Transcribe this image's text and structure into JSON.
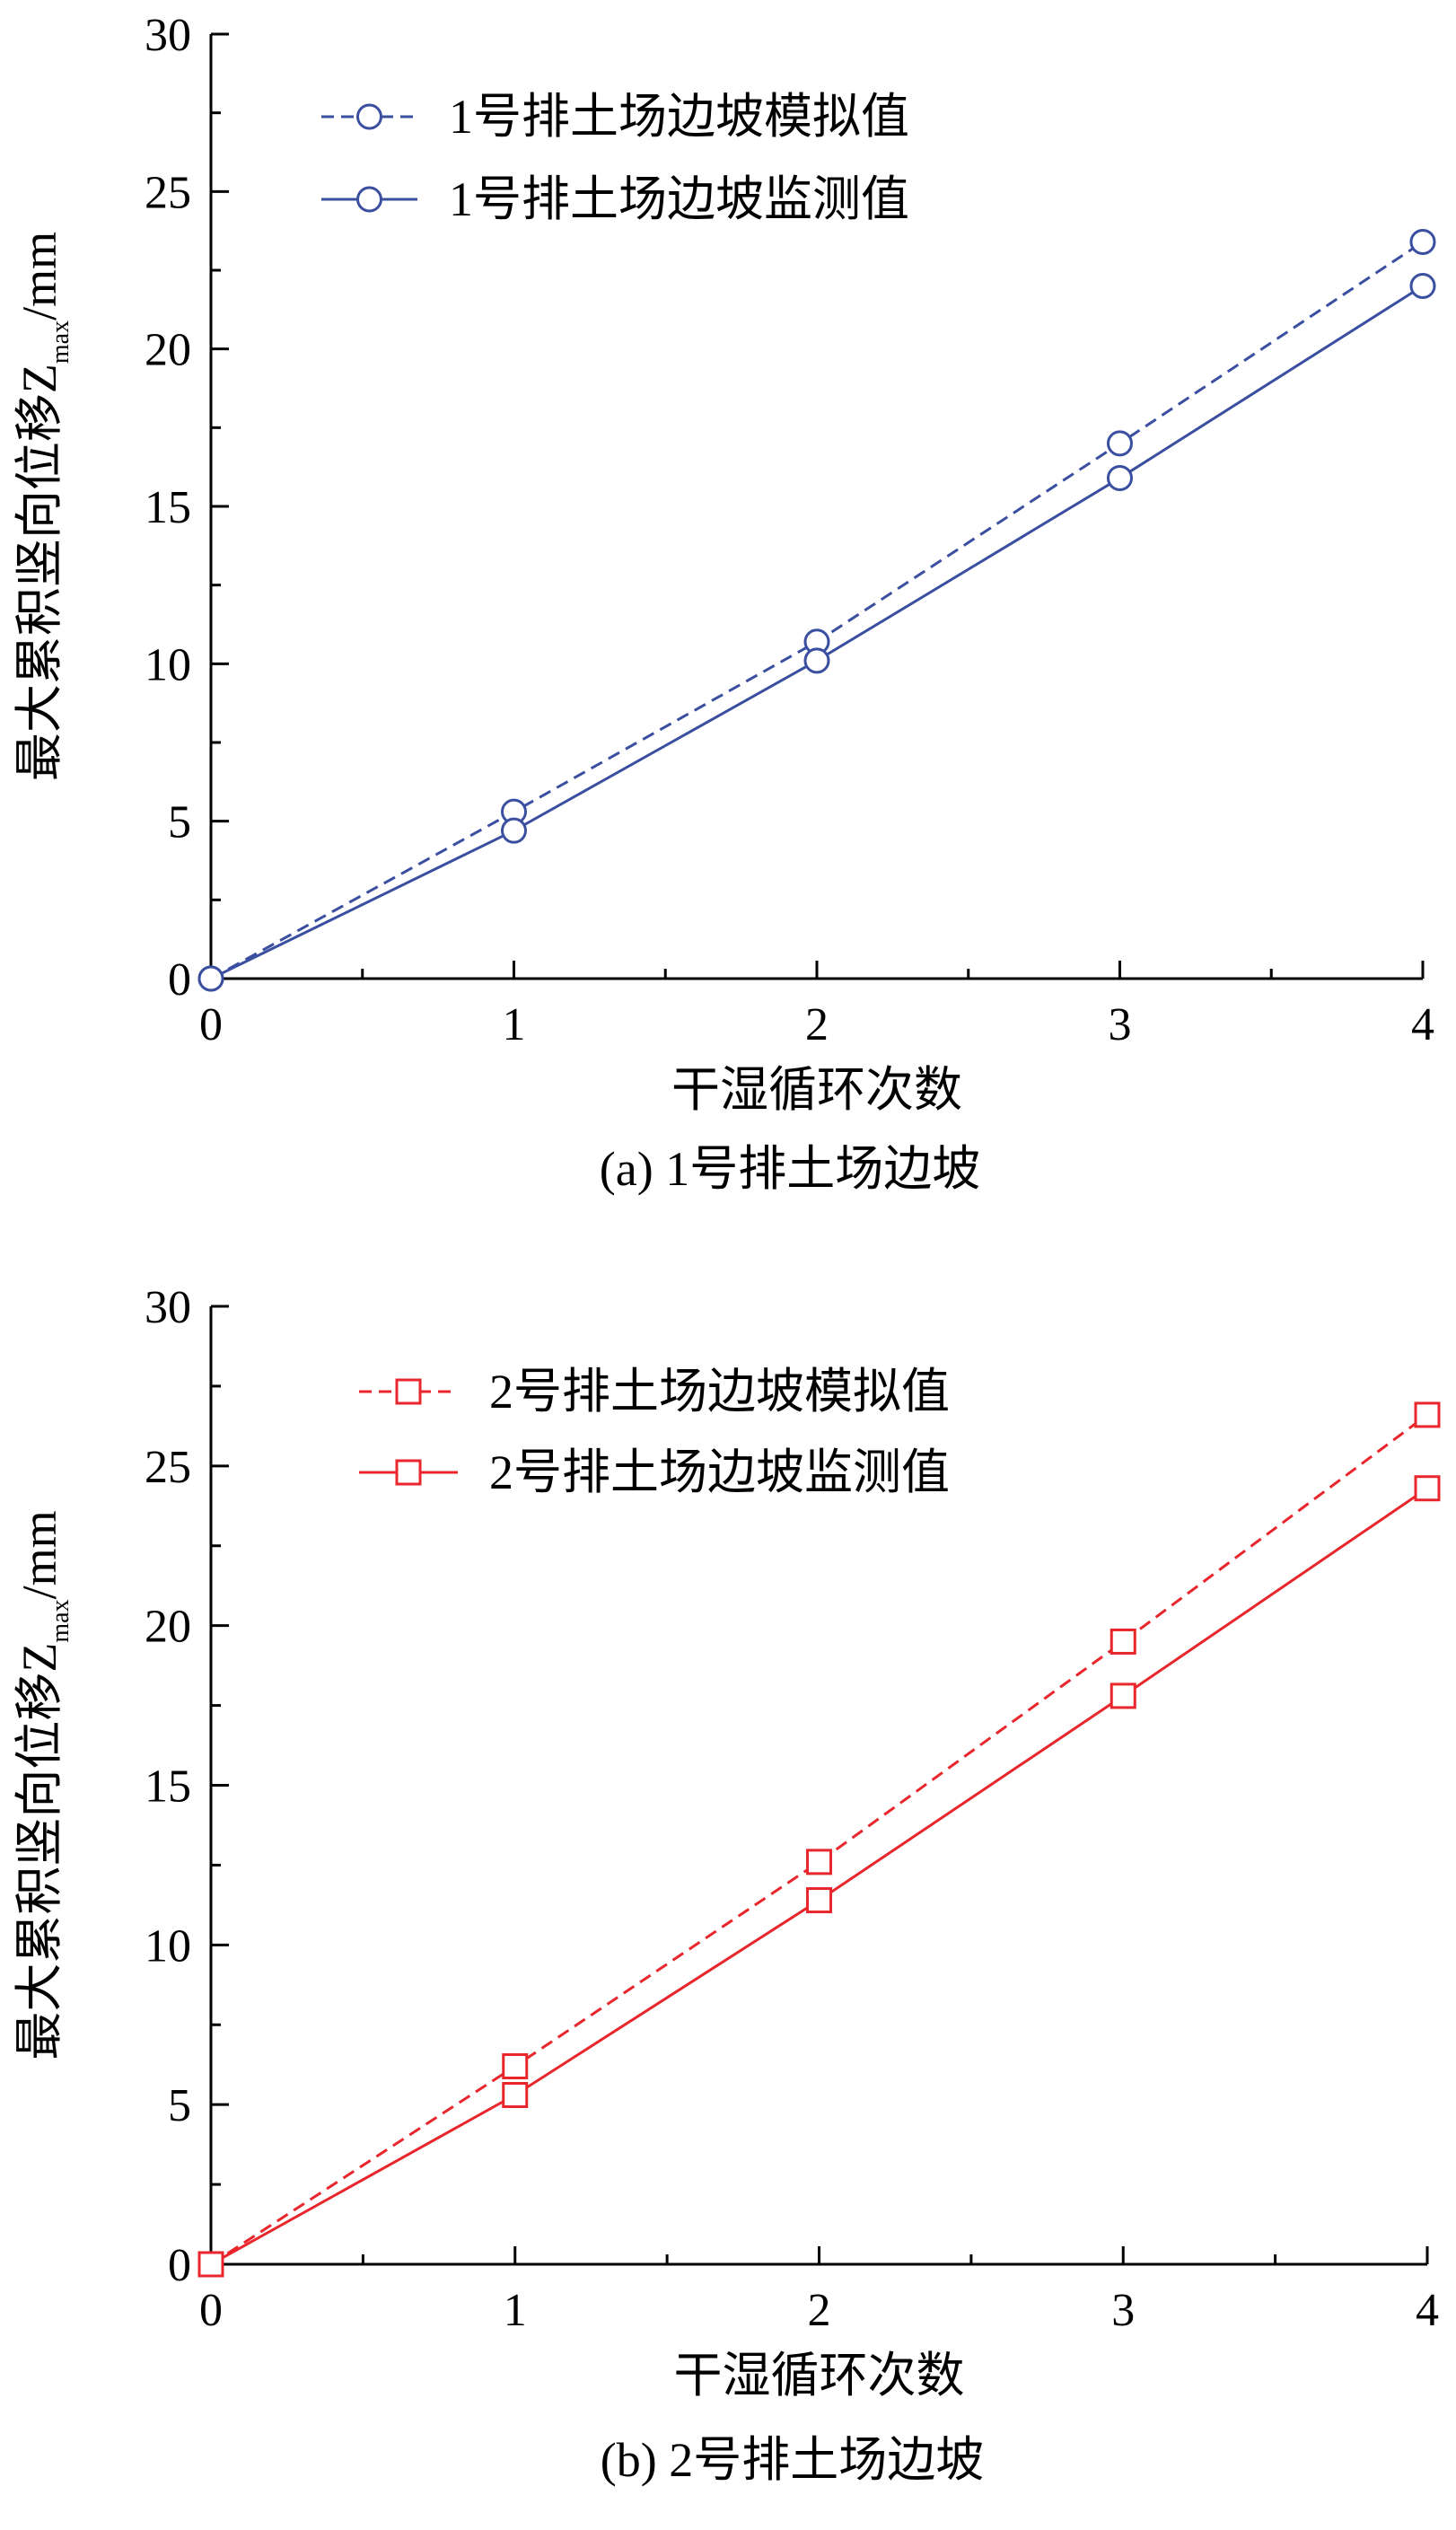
{
  "chart_data": [
    {
      "type": "line",
      "caption": "(a) 1号排土场边坡",
      "xlabel": "干湿循环次数",
      "ylabel": {
        "main": "最大累积竖向位移Z",
        "sub": "max",
        "unit": "/mm"
      },
      "xlim": [
        0,
        4
      ],
      "ylim": [
        0,
        30
      ],
      "xticks": [
        0,
        1,
        2,
        3,
        4
      ],
      "yticks": [
        0,
        5,
        10,
        15,
        20,
        25,
        30
      ],
      "legend_position": "top-left",
      "color": "#3A4FA0",
      "marker": "circle",
      "series": [
        {
          "name": "1号排土场边坡模拟值",
          "style": "dashed",
          "x": [
            0,
            1,
            2,
            3,
            4
          ],
          "y": [
            0,
            5.3,
            10.7,
            17.0,
            23.4
          ]
        },
        {
          "name": "1号排土场边坡监测值",
          "style": "solid",
          "x": [
            0,
            1,
            2,
            3,
            4
          ],
          "y": [
            0,
            4.7,
            10.1,
            15.9,
            22.0
          ]
        }
      ]
    },
    {
      "type": "line",
      "caption": "(b) 2号排土场边坡",
      "xlabel": "干湿循环次数",
      "ylabel": {
        "main": "最大累积竖向位移Z",
        "sub": "max",
        "unit": "/mm"
      },
      "xlim": [
        0,
        4
      ],
      "ylim": [
        0,
        30
      ],
      "xticks": [
        0,
        1,
        2,
        3,
        4
      ],
      "yticks": [
        0,
        5,
        10,
        15,
        20,
        25,
        30
      ],
      "legend_position": "top-left",
      "color": "#E8262B",
      "marker": "square",
      "series": [
        {
          "name": "2号排土场边坡模拟值",
          "style": "dashed",
          "x": [
            0,
            1,
            2,
            3,
            4
          ],
          "y": [
            0,
            6.2,
            12.6,
            19.5,
            26.6
          ]
        },
        {
          "name": "2号排土场边坡监测值",
          "style": "solid",
          "x": [
            0,
            1,
            2,
            3,
            4
          ],
          "y": [
            0,
            5.3,
            11.4,
            17.8,
            24.3
          ]
        }
      ]
    }
  ]
}
